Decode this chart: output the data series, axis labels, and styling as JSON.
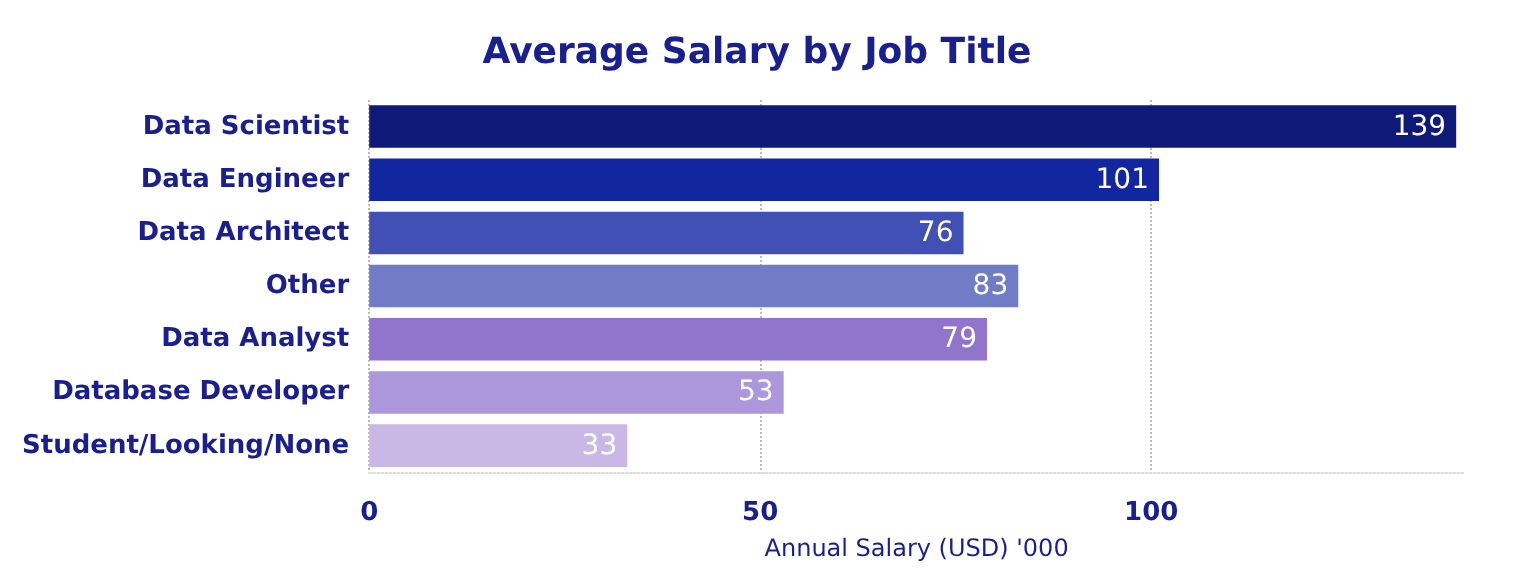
{
  "chart_data": {
    "type": "bar",
    "orientation": "horizontal",
    "title": "Average Salary by Job Title",
    "xlabel": "Annual Salary (USD) '000",
    "categories": [
      "Data Scientist",
      "Data Engineer",
      "Data Architect",
      "Other",
      "Data Analyst",
      "Database Developer",
      "Student/Looking/None"
    ],
    "values": [
      139,
      101,
      76,
      83,
      79,
      53,
      33
    ],
    "colors": [
      "#0f1a78",
      "#1226a0",
      "#4150b4",
      "#717cc6",
      "#9174cc",
      "#ad97dc",
      "#c9b8e6"
    ],
    "xlim": [
      0,
      140
    ],
    "xticks": [
      0,
      50,
      100
    ],
    "grid": "x",
    "data_labels": true
  }
}
